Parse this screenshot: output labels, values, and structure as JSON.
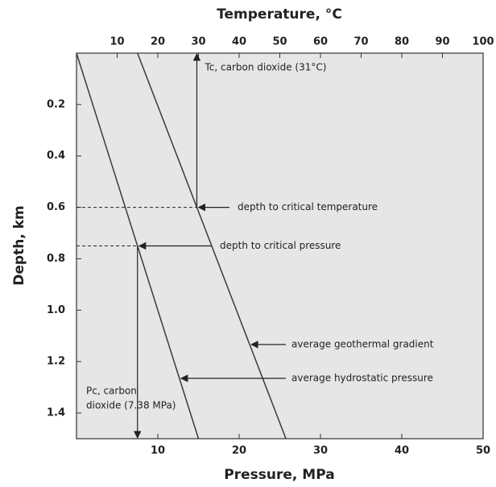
{
  "chart_data": {
    "type": "line",
    "x_label": "Pressure, MPa",
    "x2_label": "Temperature, °C",
    "y_label": "Depth, km",
    "xlim": [
      0,
      50
    ],
    "xticks": [
      10,
      20,
      30,
      40,
      50
    ],
    "x2lim": [
      0,
      100
    ],
    "x2ticks": [
      10,
      20,
      30,
      40,
      50,
      60,
      70,
      80,
      90,
      100
    ],
    "ylim": [
      0,
      1.5
    ],
    "y_inverted": true,
    "yticks": [
      0.2,
      0.4,
      0.6,
      0.8,
      {
        "value": 1,
        "label": "1.0"
      },
      1.2,
      1.4
    ],
    "background": "#e6e6e6",
    "series": [
      {
        "name": "average geothermal gradient",
        "axis": "x2",
        "color": "#3a3a3a",
        "x": [
          15,
          51.5
        ],
        "y": [
          0,
          1.5
        ]
      },
      {
        "name": "average hydrostatic pressure",
        "axis": "x",
        "color": "#3a3a3a",
        "x": [
          0,
          15
        ],
        "y": [
          0,
          1.5
        ]
      }
    ],
    "critical_temperature": {
      "label": "Tc, carbon dioxide (31°C)",
      "depth_label": "depth to critical temperature",
      "depth": 0.6
    },
    "critical_pressure": {
      "label": [
        "Pc, carbon",
        "dioxide (7.38 MPa)"
      ],
      "depth_label": "depth to critical pressure",
      "depth": 0.75
    }
  }
}
